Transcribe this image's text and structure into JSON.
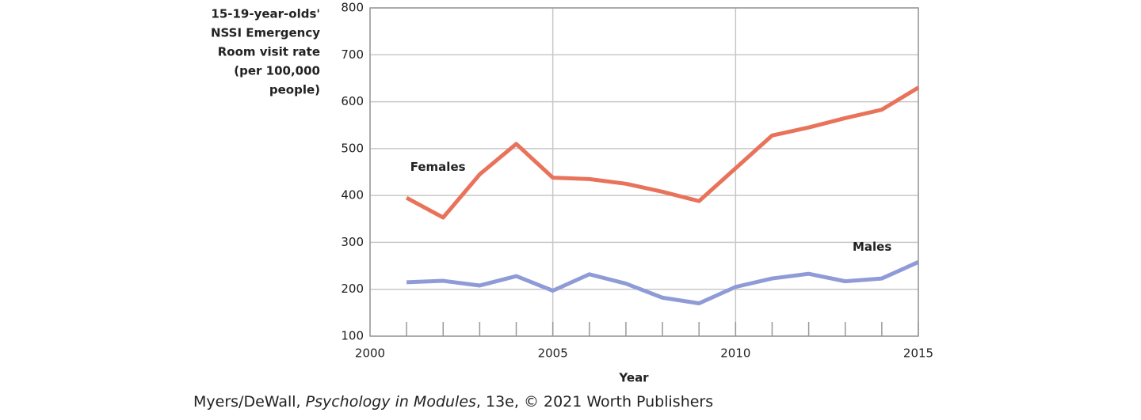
{
  "chart_data": {
    "type": "line",
    "ylabel": [
      "15-19-year-olds'",
      "NSSI Emergency",
      "Room visit rate",
      "(per 100,000",
      "people)"
    ],
    "xlabel": "Year",
    "x": [
      2001,
      2002,
      2003,
      2004,
      2005,
      2006,
      2007,
      2008,
      2009,
      2010,
      2011,
      2012,
      2013,
      2014,
      2015
    ],
    "series": [
      {
        "name": "Females",
        "color": "#e8735a",
        "values": [
          395,
          353,
          445,
          510,
          438,
          435,
          425,
          408,
          388,
          458,
          528,
          545,
          565,
          583,
          630
        ]
      },
      {
        "name": "Males",
        "color": "#8f9bd6",
        "values": [
          215,
          218,
          208,
          228,
          197,
          232,
          212,
          182,
          170,
          205,
          223,
          233,
          217,
          223,
          258
        ]
      }
    ],
    "xlim": [
      2000,
      2015
    ],
    "xticks": [
      2000,
      2005,
      2010,
      2015
    ],
    "ylim": [
      100,
      800
    ],
    "yticks": [
      100,
      200,
      300,
      400,
      500,
      600,
      700,
      800
    ],
    "grid": true,
    "source": [
      "Myers/DeWall, ",
      "Psychology in Modules",
      ", 13e, © 2021 Worth Publishers"
    ]
  }
}
